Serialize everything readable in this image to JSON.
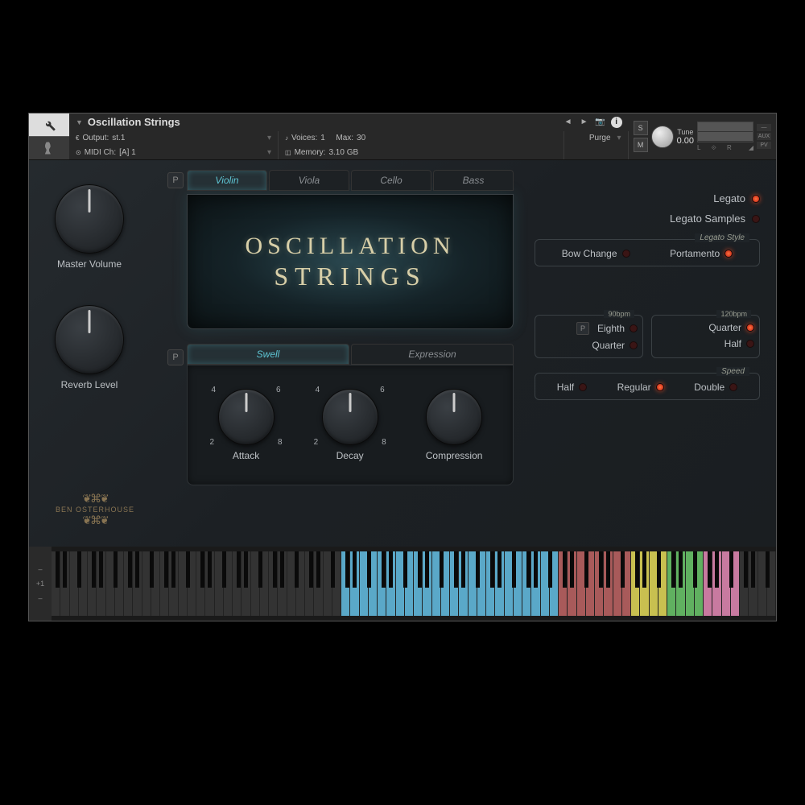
{
  "header": {
    "instrument_name": "Oscillation Strings",
    "output_label": "Output:",
    "output_value": "st.1",
    "midi_label": "MIDI Ch:",
    "midi_value": "[A] 1",
    "voices_label": "Voices:",
    "voices_value": "1",
    "max_label": "Max:",
    "max_value": "30",
    "memory_label": "Memory:",
    "memory_value": "3.10 GB",
    "purge": "Purge",
    "solo": "S",
    "mute": "M",
    "tune_label": "Tune",
    "tune_value": "0.00",
    "pan_l": "L",
    "pan_r": "R",
    "aux": "AUX",
    "pv": "PV",
    "minus": "—"
  },
  "knobs": {
    "master_volume": "Master Volume",
    "reverb_level": "Reverb Level"
  },
  "logo": "BEN OSTERHOUSE",
  "instrument_tabs": [
    "Violin",
    "Viola",
    "Cello",
    "Bass"
  ],
  "instrument_active": 0,
  "title_line1": "OSCILLATION",
  "title_line2": "STRINGS",
  "mode_tabs": [
    "Swell",
    "Expression"
  ],
  "mode_active": 0,
  "adsr": {
    "attack": {
      "label": "Attack",
      "ticks": [
        "2",
        "4",
        "6",
        "8"
      ]
    },
    "decay": {
      "label": "Decay",
      "ticks": [
        "2",
        "4",
        "6",
        "8"
      ]
    },
    "compression": {
      "label": "Compression"
    }
  },
  "p_label": "P",
  "right": {
    "legato": "Legato",
    "legato_samples": "Legato Samples",
    "legato_style_title": "Legato Style",
    "bow_change": "Bow Change",
    "portamento": "Portamento",
    "bpm90_title": "90bpm",
    "bpm120_title": "120bpm",
    "eighth": "Eighth",
    "quarter": "Quarter",
    "half": "Half",
    "speed_title": "Speed",
    "speed_half": "Half",
    "speed_regular": "Regular",
    "speed_double": "Double"
  },
  "keyboard": {
    "octave_btn": "+1",
    "zones": [
      {
        "octaves": 4,
        "color": "#333333"
      },
      {
        "octaves": 3,
        "color": "#5aa8c8"
      },
      {
        "octaves": 1,
        "color": "#a85a5a"
      },
      {
        "octaves": 0.5,
        "color": "#c8c050"
      },
      {
        "octaves": 0.5,
        "color": "#60b060"
      },
      {
        "octaves": 0.5,
        "color": "#c87aa0"
      },
      {
        "octaves": 0.5,
        "color": "#333333"
      }
    ]
  }
}
